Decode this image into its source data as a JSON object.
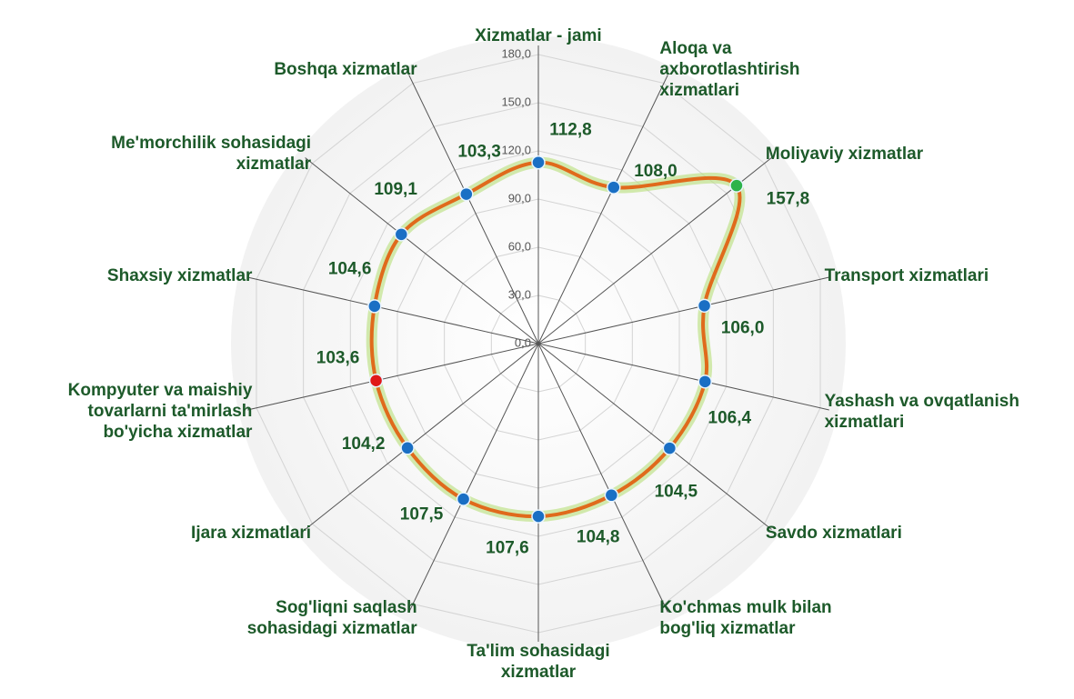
{
  "chart_data": {
    "type": "radar",
    "categories": [
      "Xizmatlar - jami",
      "Aloqa va\naxborotlashtirish\nxizmatlari",
      "Moliyaviy xizmatlar",
      "Transport xizmatlari",
      "Yashash va ovqatlanish\nxizmatlari",
      "Savdo xizmatlari",
      "Ko'chmas mulk bilan\nbog'liq xizmatlar",
      "Ta'lim sohasidagi\nxizmatlar",
      "Sog'liqni saqlash\nsohasidagi xizmatlar",
      "Ijara xizmatlari",
      "Kompyuter va maishiy\ntovarlarni ta'mirlash\nbo'yicha xizmatlar",
      "Shaxsiy xizmatlar",
      "Me'morchilik sohasidagi\nxizmatlar",
      "Boshqa xizmatlar"
    ],
    "values": [
      112.8,
      108.0,
      157.8,
      106.0,
      106.4,
      104.5,
      104.8,
      107.6,
      107.5,
      104.2,
      103.6,
      104.6,
      109.1,
      103.3
    ],
    "value_labels": [
      "112,8",
      "108,0",
      "157,8",
      "106,0",
      "106,4",
      "104,5",
      "104,8",
      "107,6",
      "107,5",
      "104,2",
      "103,6",
      "104,6",
      "109,1",
      "103,3"
    ],
    "point_colors": [
      "#1a6fc4",
      "#1a6fc4",
      "#2db34a",
      "#1a6fc4",
      "#1a6fc4",
      "#1a6fc4",
      "#1a6fc4",
      "#1a6fc4",
      "#1a6fc4",
      "#1a6fc4",
      "#e01818",
      "#1a6fc4",
      "#1a6fc4",
      "#1a6fc4"
    ],
    "color": "#e06a1c",
    "ylim": [
      0,
      180
    ],
    "yticks": [
      {
        "value": 0,
        "label": "0,0"
      },
      {
        "value": 30,
        "label": "30,0"
      },
      {
        "value": 60,
        "label": "60,0"
      },
      {
        "value": 90,
        "label": "90,0"
      },
      {
        "value": 120,
        "label": "120,0"
      },
      {
        "value": 150,
        "label": "150,0"
      },
      {
        "value": 180,
        "label": "180,0"
      }
    ],
    "grid": true
  }
}
